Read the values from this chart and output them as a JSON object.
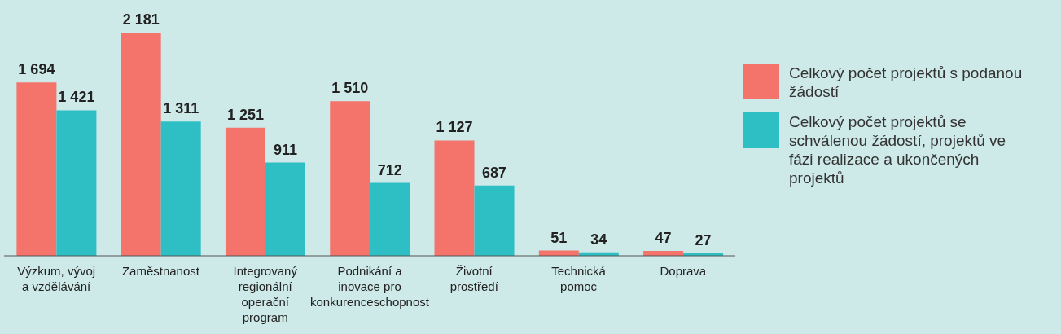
{
  "chart_data": {
    "type": "bar",
    "categories": [
      "Výzkum, vývoj a vzdělávání",
      "Zaměstnanost",
      "Integrovaný regionální operační program",
      "Podnikání a inovace pro konkurenceschopnost",
      "Životní prostředí",
      "Technická pomoc",
      "Doprava"
    ],
    "series": [
      {
        "name": "Celkový počet projektů s podanou žádostí",
        "color": "#f4736a",
        "values": [
          1694,
          2181,
          1251,
          1510,
          1127,
          51,
          47
        ],
        "value_labels": [
          "1 694",
          "2 181",
          "1 251",
          "1 510",
          "1 127",
          "51",
          "47"
        ]
      },
      {
        "name": "Celkový počet projektů se schválenou žádostí, projektů ve fázi realizace a ukončených projektů",
        "color": "#2ebfc4",
        "values": [
          1421,
          1311,
          911,
          712,
          687,
          34,
          27
        ],
        "value_labels": [
          "1 421",
          "1 311",
          "911",
          "712",
          "687",
          "34",
          "27"
        ]
      }
    ],
    "legend": "right",
    "grid": false
  }
}
